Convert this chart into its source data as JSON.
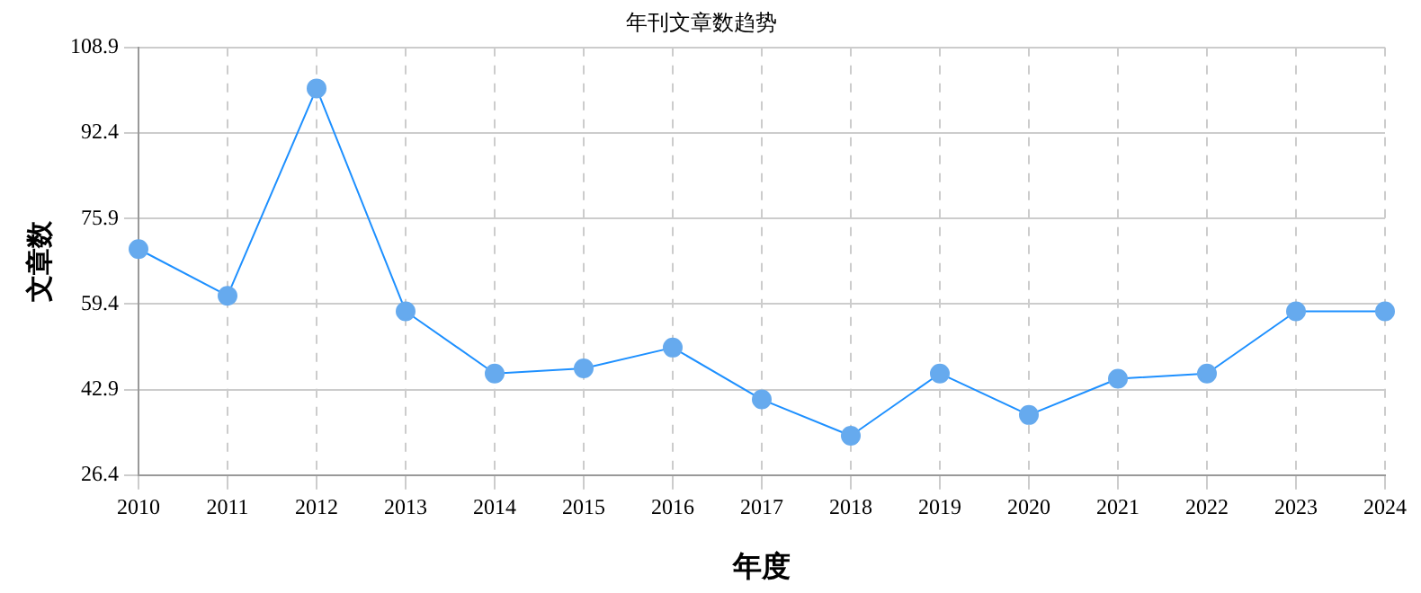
{
  "chart_data": {
    "type": "line",
    "title": "年刊文章数趋势",
    "xlabel": "年度",
    "ylabel": "文章数",
    "categories": [
      "2010",
      "2011",
      "2012",
      "2013",
      "2014",
      "2015",
      "2016",
      "2017",
      "2018",
      "2019",
      "2020",
      "2021",
      "2022",
      "2023",
      "2024"
    ],
    "series": [
      {
        "color": "#1e90ff",
        "values": [
          70,
          61,
          101,
          58,
          46,
          47,
          51,
          41,
          34,
          46,
          38,
          45,
          46,
          58,
          58
        ]
      }
    ],
    "ylim": [
      26.4,
      108.9
    ],
    "yticks": [
      26.4,
      42.9,
      59.4,
      75.9,
      92.4,
      108.9
    ],
    "grid": true,
    "marker": "circle",
    "line_style": "solid",
    "legend": false
  }
}
